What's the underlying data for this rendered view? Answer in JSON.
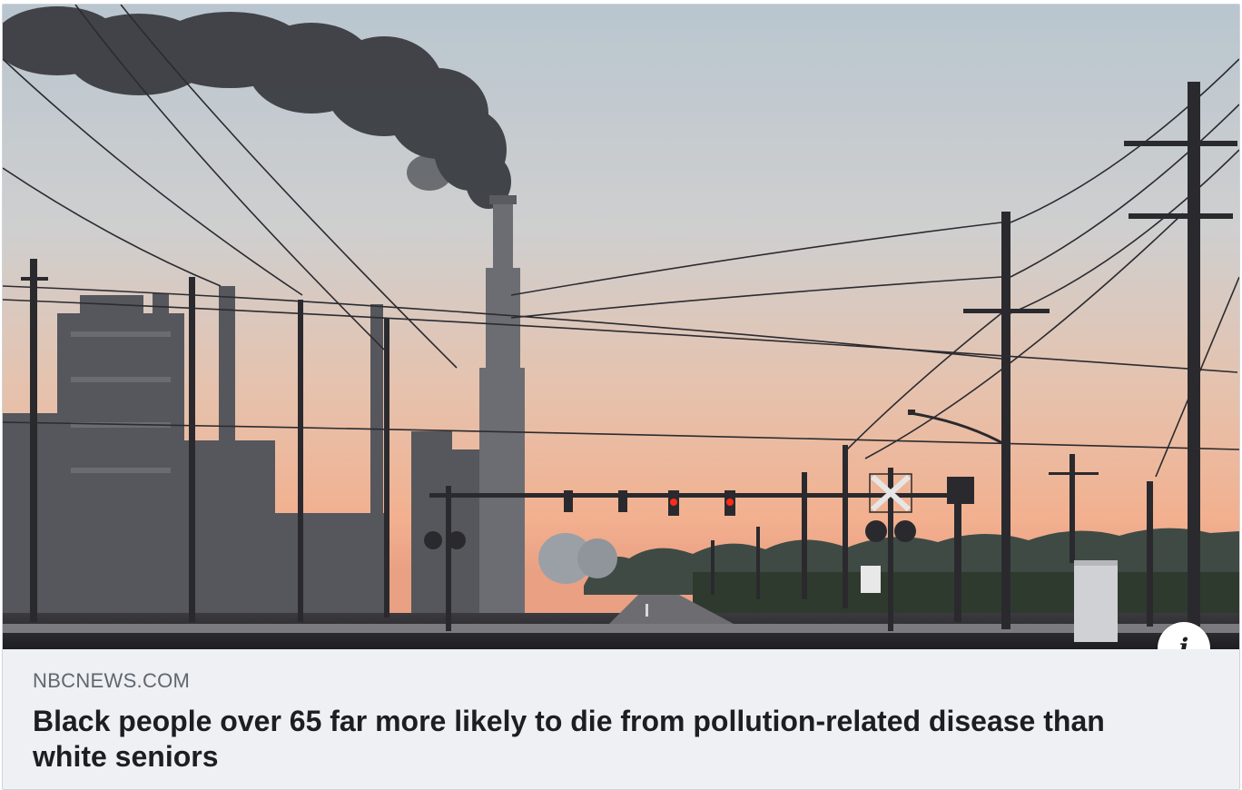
{
  "link_card": {
    "image_description_icon": "refinery-sunset-photo",
    "source_domain": "NBCNEWS.COM",
    "headline": "Black people over 65 far more likely to die from pollution-related disease than white seniors",
    "info_button_glyph": "i",
    "info_icon": "info-icon"
  },
  "colors": {
    "caption_background": "#eef0f3",
    "domain_text": "#606770",
    "headline_text": "#1c1e21",
    "traffic_light_red": "#ff2a1a"
  }
}
